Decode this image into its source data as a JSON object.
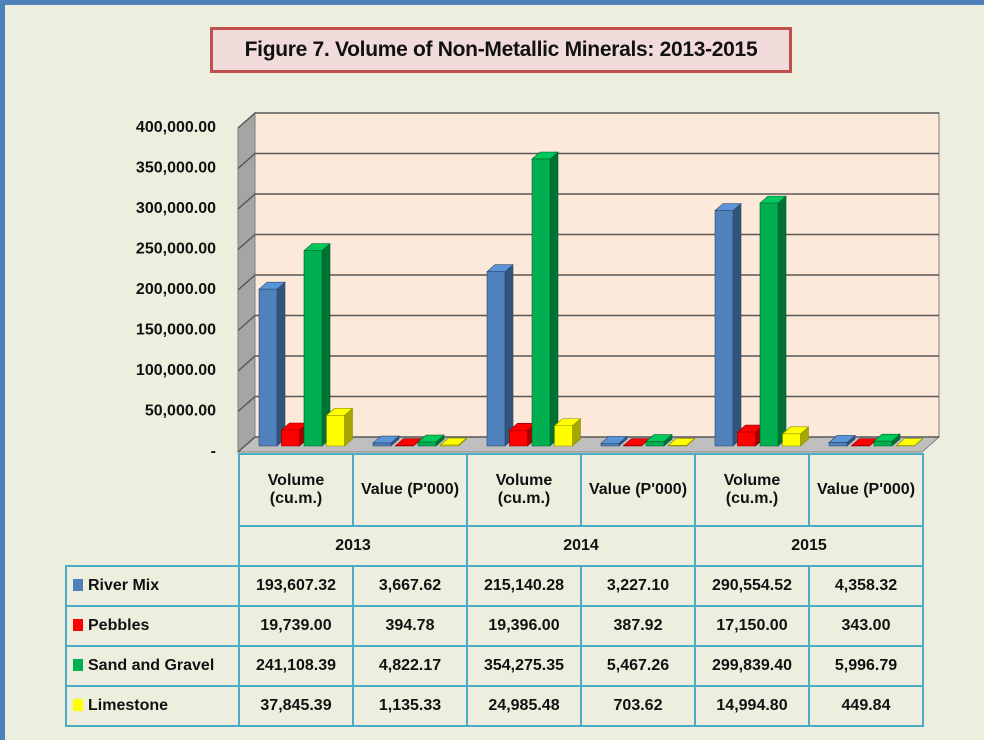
{
  "chart_data": {
    "type": "bar3d",
    "title": "Figure 7. Volume of Non-Metallic Minerals: 2013-2015",
    "categories": [
      "Volume (cu.m.)",
      "Value (P'000)",
      "Volume (cu.m.)",
      "Value (P'000)",
      "Volume (cu.m.)",
      "Value (P'000)"
    ],
    "groups": [
      "2013",
      "2014",
      "2015"
    ],
    "ylim": [
      0,
      400000
    ],
    "yticks": [
      {
        "value": 0,
        "label": "-"
      },
      {
        "value": 50000,
        "label": "50,000.00"
      },
      {
        "value": 100000,
        "label": "100,000.00"
      },
      {
        "value": 150000,
        "label": "150,000.00"
      },
      {
        "value": 200000,
        "label": "200,000.00"
      },
      {
        "value": 250000,
        "label": "250,000.00"
      },
      {
        "value": 300000,
        "label": "300,000.00"
      },
      {
        "value": 350000,
        "label": "350,000.00"
      },
      {
        "value": 400000,
        "label": "400,000.00"
      }
    ],
    "grid": true,
    "series": [
      {
        "name": "River Mix",
        "color": "#4f81bd",
        "values": [
          193607.32,
          3667.62,
          215140.28,
          3227.1,
          290554.52,
          4358.32
        ],
        "value_labels": [
          "193,607.32",
          "3,667.62",
          "215,140.28",
          "3,227.10",
          "290,554.52",
          "4,358.32"
        ]
      },
      {
        "name": "Pebbles",
        "color": "#ff0000",
        "values": [
          19739.0,
          394.78,
          19396.0,
          387.92,
          17150.0,
          343.0
        ],
        "value_labels": [
          "19,739.00",
          "394.78",
          "19,396.00",
          "387.92",
          "17,150.00",
          "343.00"
        ]
      },
      {
        "name": "Sand and Gravel",
        "color": "#00b050",
        "values": [
          241108.39,
          4822.17,
          354275.35,
          5467.26,
          299839.4,
          5996.79
        ],
        "value_labels": [
          "241,108.39",
          "4,822.17",
          "354,275.35",
          "5,467.26",
          "299,839.40",
          "5,996.79"
        ]
      },
      {
        "name": "Limestone",
        "color": "#ffff00",
        "values": [
          37845.39,
          1135.33,
          24985.48,
          703.62,
          14994.8,
          449.84
        ],
        "value_labels": [
          "37,845.39",
          "1,135.33",
          "24,985.48",
          "703.62",
          "14,994.80",
          "449.84"
        ]
      }
    ]
  }
}
